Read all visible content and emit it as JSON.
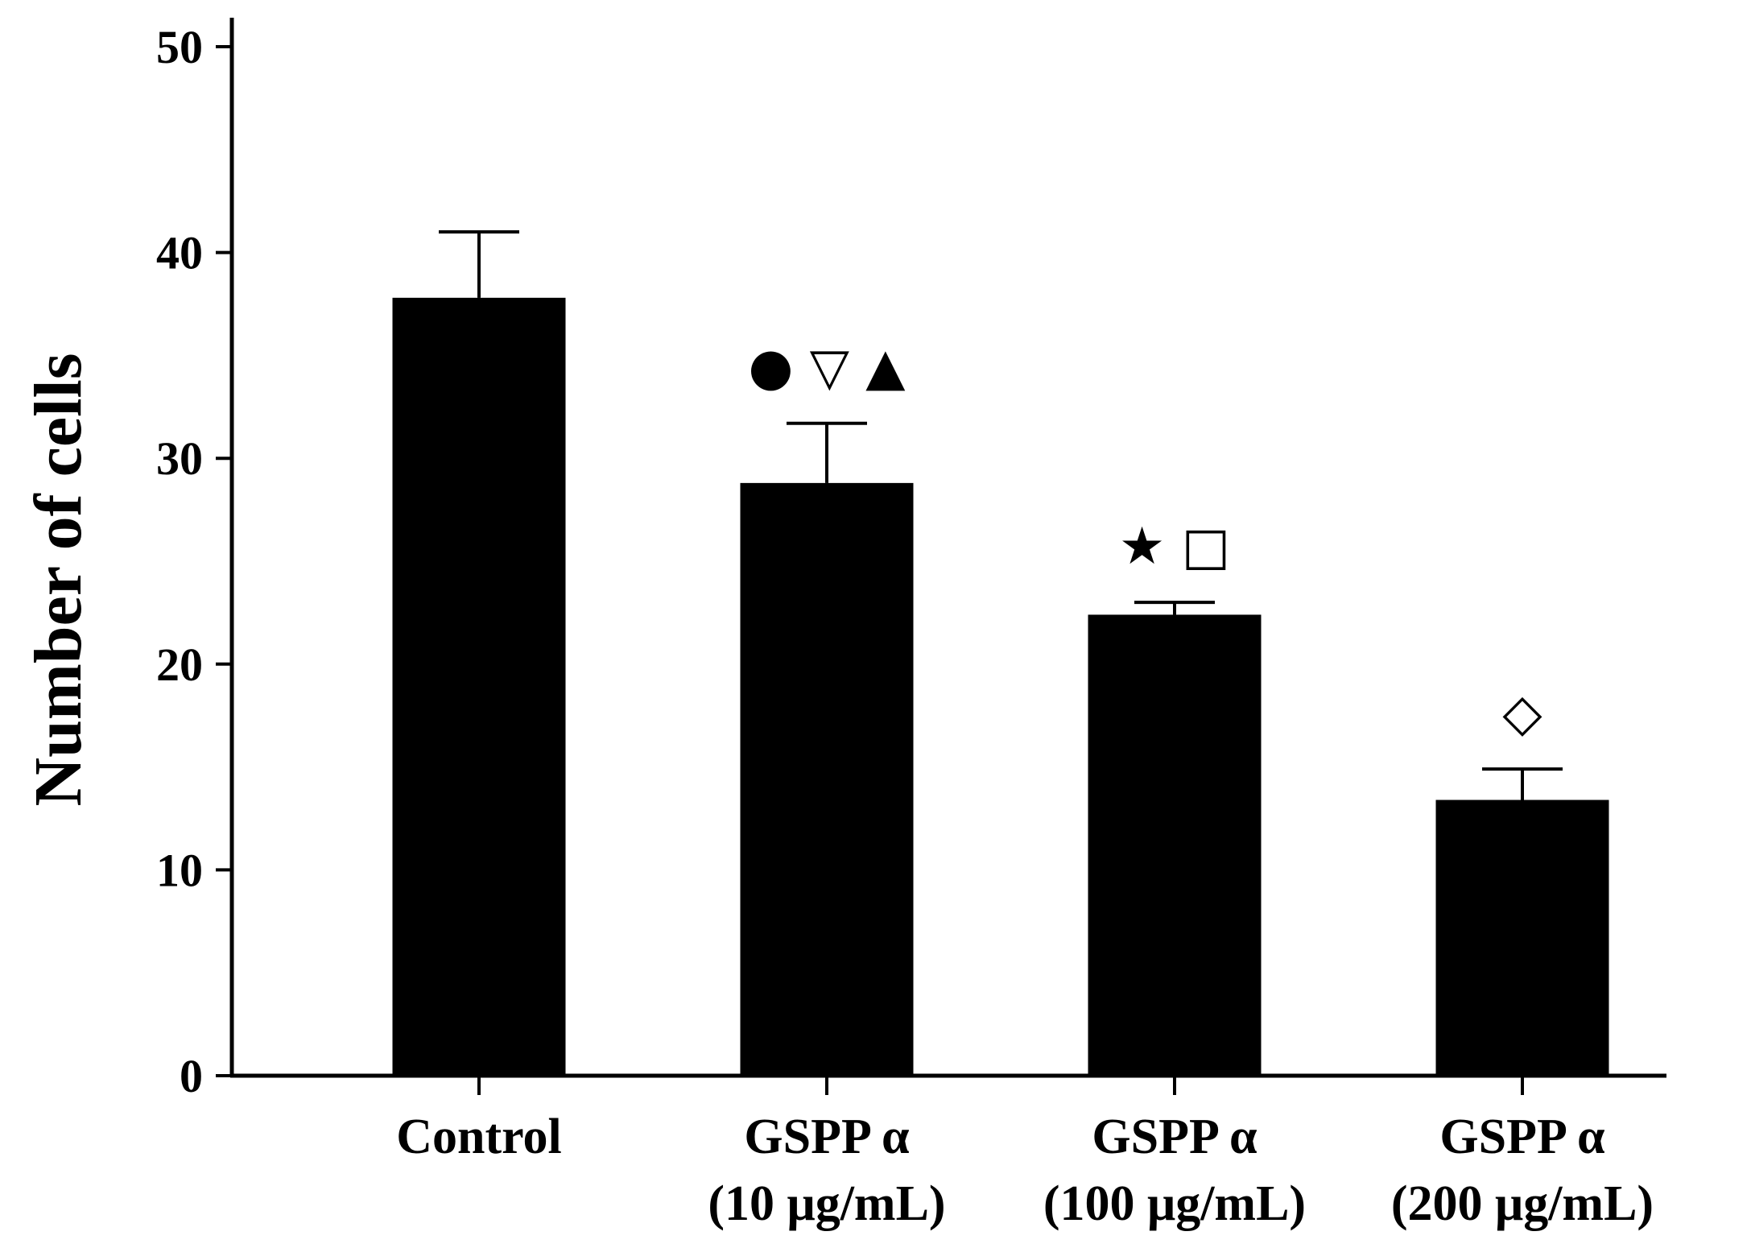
{
  "chart_data": {
    "type": "bar",
    "title": "",
    "xlabel": "",
    "ylabel": "Number of cells",
    "ylim": [
      0,
      50
    ],
    "yticks": [
      0,
      10,
      20,
      30,
      40,
      50
    ],
    "grid": false,
    "legend": "none",
    "bar_color": "#000000",
    "categories": [
      {
        "line1": "Control",
        "line2": ""
      },
      {
        "line1": "GSPP α",
        "line2": "(10 μg/mL)"
      },
      {
        "line1": "GSPP α",
        "line2": "(100 μg/mL)"
      },
      {
        "line1": "GSPP α",
        "line2": "(200 μg/mL)"
      }
    ],
    "values": [
      37.8,
      28.8,
      22.4,
      13.4
    ],
    "error_upper": [
      41.0,
      31.7,
      23.0,
      14.9
    ],
    "significance_markers": [
      "",
      "● ▽ ▲",
      "★ □",
      "◇"
    ]
  }
}
